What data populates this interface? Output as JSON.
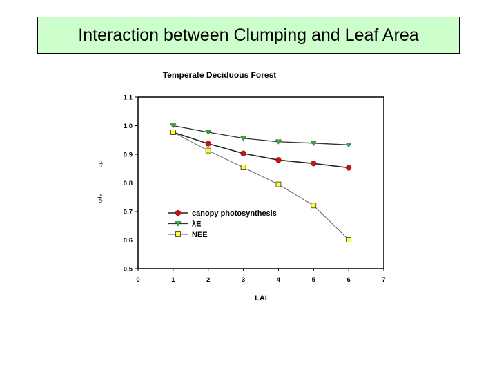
{
  "slide": {
    "title": "Interaction between Clumping and Leaf Area",
    "title_bg": "#ccffcc"
  },
  "chart_data": {
    "type": "line",
    "title": "Temperate Deciduous Forest",
    "xlabel": "LAI",
    "ylabel_top": "clp",
    "ylabel_bottom": "sph",
    "xlim": [
      0,
      7
    ],
    "ylim": [
      0.5,
      1.1
    ],
    "x_ticks": [
      "0",
      "1",
      "2",
      "3",
      "4",
      "5",
      "6",
      "7"
    ],
    "y_ticks": [
      "0.5",
      "0.6",
      "0.7",
      "0.8",
      "0.9",
      "1.0",
      "1.1"
    ],
    "grid": false,
    "legend_position": "lower-left inside",
    "x": [
      1,
      2,
      3,
      4,
      5,
      6
    ],
    "series": [
      {
        "name": "canopy photosynthesis",
        "marker": "circle",
        "color": "#cc1111",
        "line_color": "#222222",
        "values": [
          0.977,
          0.937,
          0.903,
          0.88,
          0.868,
          0.853
        ]
      },
      {
        "name": "λE",
        "marker": "triangle-down",
        "color": "#33aa44",
        "line_color": "#333333",
        "values": [
          1.0,
          0.977,
          0.956,
          0.944,
          0.939,
          0.933
        ]
      },
      {
        "name": "NEE",
        "marker": "square",
        "color": "#ffff33",
        "line_color": "#555555",
        "values": [
          0.977,
          0.913,
          0.854,
          0.795,
          0.721,
          0.601
        ]
      }
    ]
  }
}
